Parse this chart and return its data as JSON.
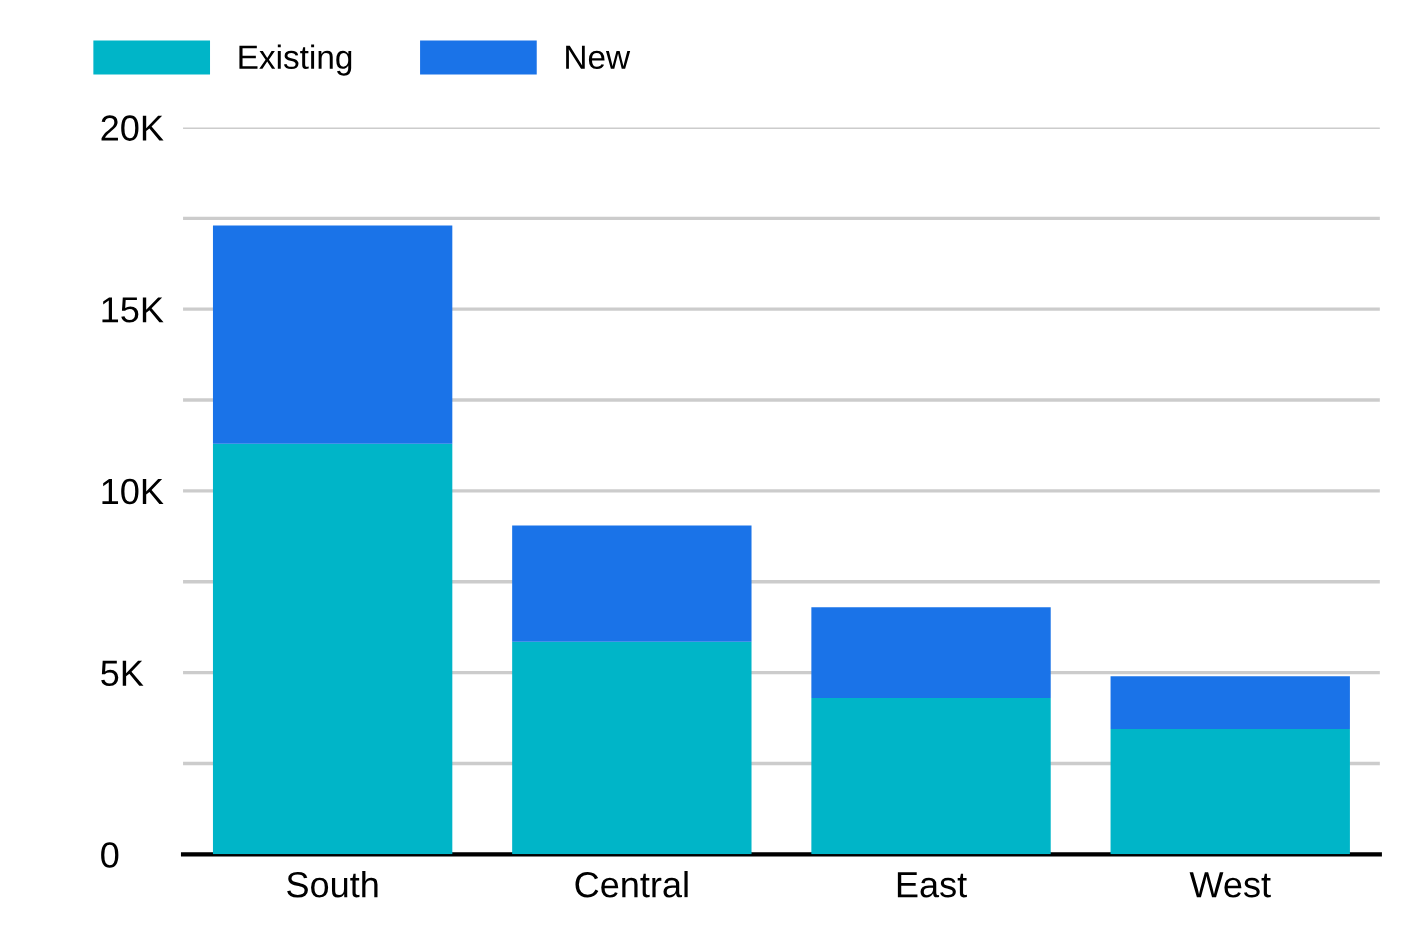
{
  "chart_data": {
    "type": "bar",
    "stacked": true,
    "categories": [
      "South",
      "Central",
      "East",
      "West"
    ],
    "series": [
      {
        "name": "Existing",
        "color": "#00b5c8",
        "values": [
          11300,
          5850,
          4300,
          3450
        ]
      },
      {
        "name": "New",
        "color": "#1a73e8",
        "values": [
          6000,
          3200,
          2500,
          1450
        ]
      }
    ],
    "ylim": [
      0,
      20000
    ],
    "yticks": [
      0,
      {
        "value": 2500,
        "label": null
      },
      {
        "value": 5000,
        "label": "5K"
      },
      {
        "value": 7500,
        "label": null
      },
      {
        "value": 10000,
        "label": "10K"
      },
      {
        "value": 12500,
        "label": null
      },
      {
        "value": 15000,
        "label": "15K"
      },
      {
        "value": 17500,
        "label": null
      },
      {
        "value": 20000,
        "label": "20K"
      }
    ],
    "grid": "y",
    "legend": "top left"
  }
}
